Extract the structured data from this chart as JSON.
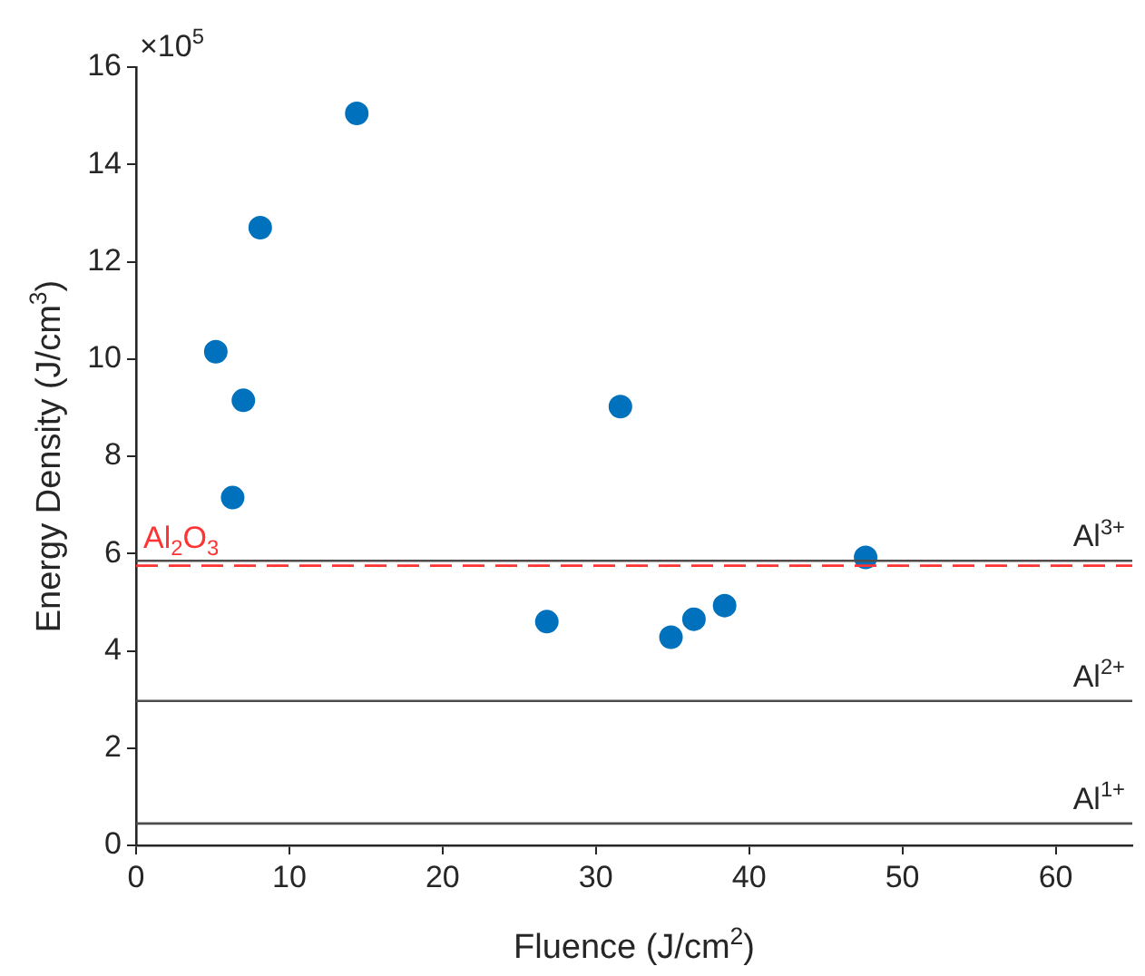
{
  "chart_data": {
    "type": "scatter",
    "xlabel": "Fluence (J/cm$^{2}$)",
    "ylabel": "Energy Density (J/cm$^{3}$)",
    "x": [
      5.2,
      6.3,
      7.0,
      8.1,
      14.4,
      26.8,
      31.6,
      34.9,
      36.4,
      38.4,
      47.6
    ],
    "series": [
      {
        "color": "#0072bd",
        "values": [
          10.15,
          7.15,
          9.15,
          12.7,
          15.05,
          4.6,
          9.02,
          4.28,
          4.65,
          4.93,
          5.92
        ]
      }
    ],
    "xlim": [
      0,
      65
    ],
    "xticks": [
      0,
      10,
      20,
      30,
      40,
      50,
      60
    ],
    "ylim": [
      0,
      16
    ],
    "yticks": [
      0,
      2,
      4,
      6,
      8,
      10,
      12,
      14,
      16
    ],
    "ref_lines": [
      {
        "axis": "y",
        "value": 5.85,
        "label": "Al$^{3+}$",
        "color": "#4d4d4d",
        "line_style": "solid"
      },
      {
        "axis": "y",
        "value": 2.97,
        "label": "Al$^{2+}$",
        "color": "#4d4d4d",
        "line_style": "solid"
      },
      {
        "axis": "y",
        "value": 0.45,
        "label": "Al$^{1+}$",
        "color": "#4d4d4d",
        "line_style": "solid"
      },
      {
        "axis": "y",
        "value": 5.75,
        "label": "Al$_{2}$O$_{3}$",
        "color": "#ff3333",
        "line_style": "dashed"
      }
    ],
    "annotations": [
      "×10$^{5}$"
    ],
    "grid": false,
    "legend": false,
    "marker": "circle"
  }
}
